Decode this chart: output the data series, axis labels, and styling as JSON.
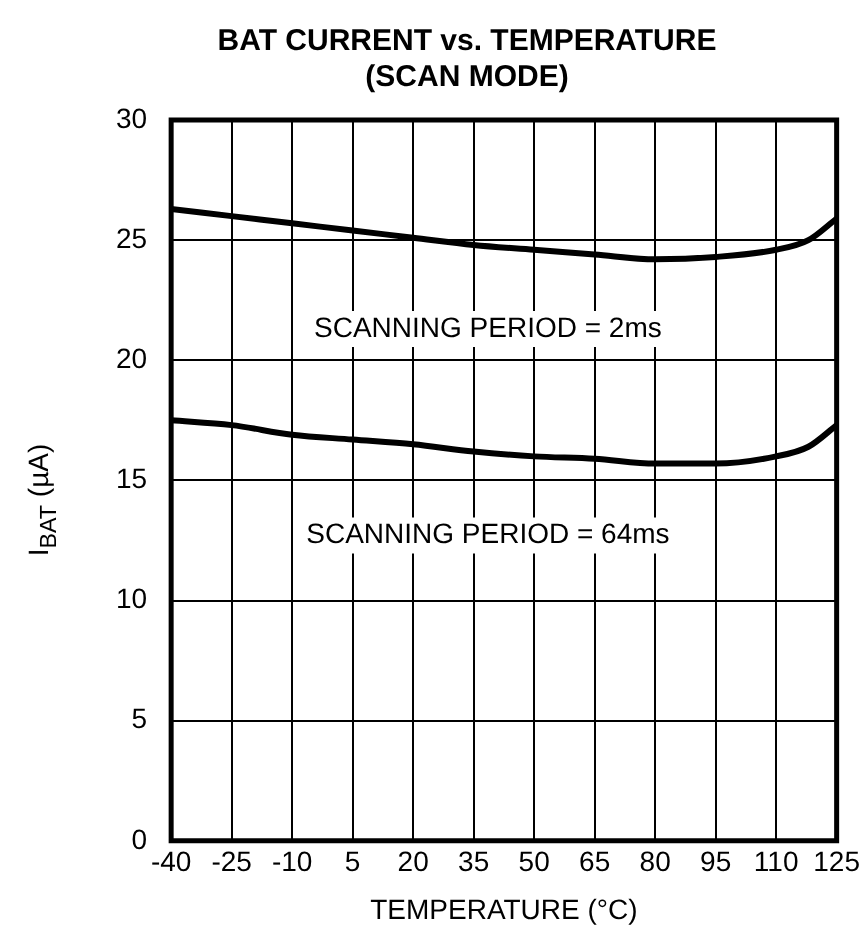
{
  "chart_data": {
    "type": "line",
    "title": "BAT CURRENT vs. TEMPERATURE\n(SCAN MODE)",
    "xlabel": "TEMPERATURE (°C)",
    "ylabel": "I$_{BAT}$ (µA)",
    "x": [
      -40,
      -25,
      -10,
      5,
      20,
      35,
      50,
      65,
      80,
      95,
      110,
      118,
      125
    ],
    "series": [
      {
        "name": "SCANNING PERIOD = 2ms",
        "color": "#000000",
        "values": [
          26.3,
          26.0,
          25.7,
          25.4,
          25.1,
          24.8,
          24.6,
          24.4,
          24.2,
          24.3,
          24.6,
          25.0,
          25.9
        ]
      },
      {
        "name": "SCANNING PERIOD = 64ms",
        "color": "#000000",
        "values": [
          17.5,
          17.3,
          16.9,
          16.7,
          16.5,
          16.2,
          16.0,
          15.9,
          15.7,
          15.7,
          16.0,
          16.4,
          17.3
        ]
      }
    ],
    "xlim": [
      -40,
      125
    ],
    "xticks": [
      -40,
      -25,
      -10,
      5,
      20,
      35,
      50,
      65,
      80,
      95,
      110,
      125
    ],
    "ylim": [
      0,
      30
    ],
    "yticks": [
      0,
      5,
      10,
      15,
      20,
      25,
      30
    ],
    "grid": true,
    "marker": "none",
    "line_style": "solid"
  }
}
